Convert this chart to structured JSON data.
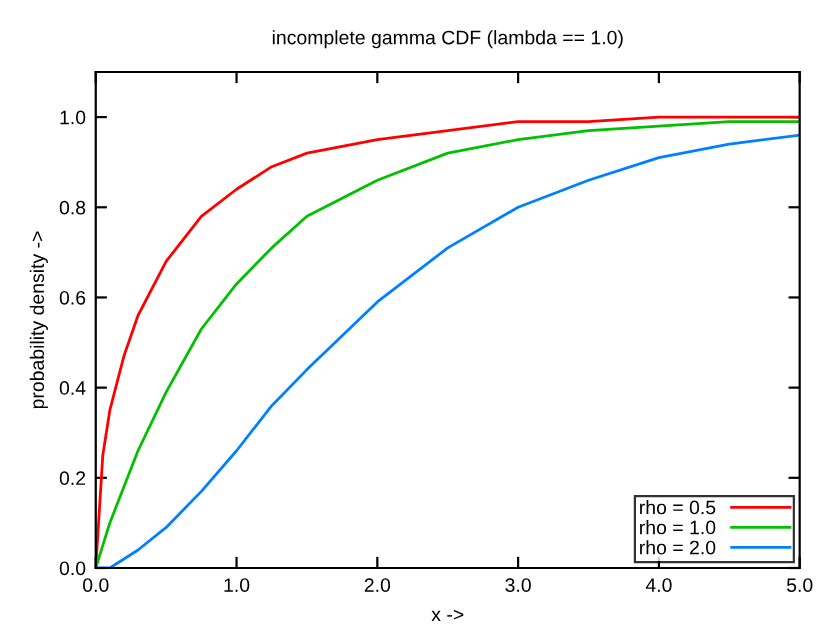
{
  "chart_data": {
    "type": "line",
    "title": "incomplete gamma CDF (lambda == 1.0)",
    "xlabel": "x ->",
    "ylabel": "probability density ->",
    "x": [
      0,
      0.05,
      0.1,
      0.2,
      0.3,
      0.5,
      0.75,
      1.0,
      1.25,
      1.5,
      2.0,
      2.5,
      3.0,
      3.5,
      4.0,
      4.5,
      5.0
    ],
    "series": [
      {
        "name": "rho = 0.5",
        "color": "#ff0000",
        "values": [
          0,
          0.25,
          0.35,
          0.47,
          0.56,
          0.68,
          0.78,
          0.84,
          0.89,
          0.92,
          0.95,
          0.97,
          0.99,
          0.99,
          1.0,
          1.0,
          1.0
        ]
      },
      {
        "name": "rho = 1.0",
        "color": "#00c000",
        "values": [
          0,
          0.05,
          0.1,
          0.18,
          0.26,
          0.39,
          0.53,
          0.63,
          0.71,
          0.78,
          0.86,
          0.92,
          0.95,
          0.97,
          0.98,
          0.99,
          0.99
        ]
      },
      {
        "name": "rho = 2.0",
        "color": "#0080ff",
        "values": [
          0,
          0.0,
          0.0,
          0.02,
          0.04,
          0.09,
          0.17,
          0.26,
          0.36,
          0.44,
          0.59,
          0.71,
          0.8,
          0.86,
          0.91,
          0.94,
          0.96
        ]
      }
    ],
    "xlim": [
      0,
      5
    ],
    "ylim": [
      0,
      1.1
    ],
    "xticks": [
      {
        "value": 0,
        "label": "0.0"
      },
      {
        "value": 1,
        "label": "1.0"
      },
      {
        "value": 2,
        "label": "2.0"
      },
      {
        "value": 3,
        "label": "3.0"
      },
      {
        "value": 4,
        "label": "4.0"
      },
      {
        "value": 5,
        "label": "5.0"
      }
    ],
    "yticks": [
      {
        "value": 0,
        "label": "0.0"
      },
      {
        "value": 0.2,
        "label": "0.2"
      },
      {
        "value": 0.4,
        "label": "0.4"
      },
      {
        "value": 0.6,
        "label": "0.6"
      },
      {
        "value": 0.8,
        "label": "0.8"
      },
      {
        "value": 1.0,
        "label": "1.0"
      }
    ],
    "legend": "bottom right",
    "grid": false,
    "line_style": "solid",
    "marker": "none"
  }
}
